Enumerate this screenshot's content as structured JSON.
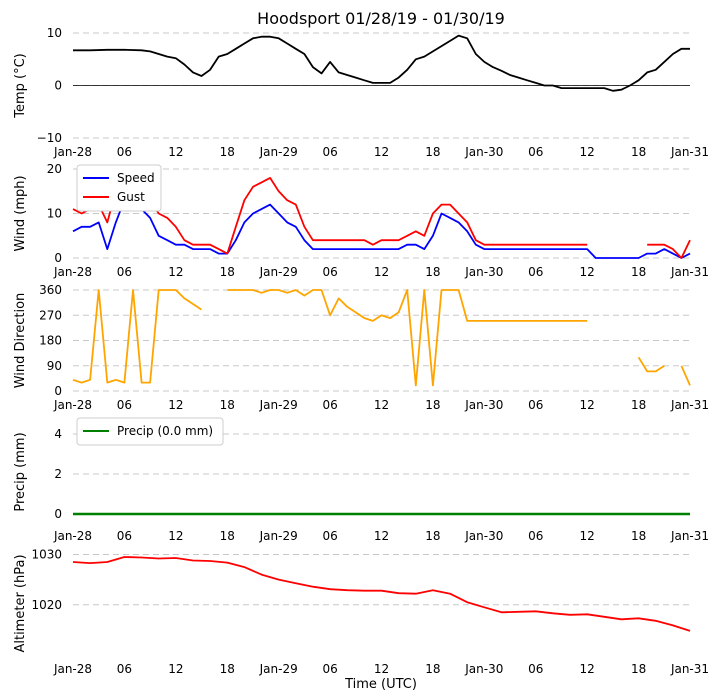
{
  "chart_data": {
    "title": "Hoodsport 01/28/19 - 01/30/19",
    "xlabel": "Time (UTC)",
    "x_ticks": [
      "Jan-28",
      "06",
      "12",
      "18",
      "Jan-29",
      "06",
      "12",
      "18",
      "Jan-30",
      "06",
      "12",
      "18",
      "Jan-31"
    ],
    "x_unit": "hours since Jan-28 00:00 UTC",
    "xlim": [
      0,
      72
    ],
    "panels": [
      {
        "type": "line",
        "ylabel": "Temp (°C)",
        "ylim": [
          -10,
          10
        ],
        "yticks": [
          10,
          0,
          -10
        ],
        "yticks_labels": [
          "10",
          "0",
          "−10"
        ],
        "zero_line": true,
        "series": [
          {
            "name": "Temp",
            "color": "#000000",
            "x": [
              0,
              2,
              4,
              6,
              8,
              9,
              10,
              11,
              12,
              13,
              14,
              15,
              16,
              17,
              18,
              19,
              20,
              21,
              22,
              23,
              24,
              25,
              26,
              27,
              28,
              29,
              30,
              31,
              32,
              33,
              34,
              35,
              36,
              37,
              38,
              39,
              40,
              41,
              42,
              43,
              44,
              45,
              46,
              47,
              48,
              49,
              50,
              51,
              52,
              53,
              54,
              55,
              56,
              57,
              58,
              59,
              60,
              61,
              62,
              63,
              64,
              65,
              66,
              67,
              68,
              69,
              70,
              71,
              72
            ],
            "y": [
              6.7,
              6.7,
              6.8,
              6.8,
              6.7,
              6.5,
              6,
              5.5,
              5.2,
              4,
              2.5,
              1.8,
              3,
              5.5,
              6,
              7,
              8,
              9,
              9.3,
              9.3,
              9,
              8,
              7,
              6,
              3.5,
              2.3,
              4.5,
              2.5,
              2,
              1.5,
              1,
              0.5,
              0.5,
              0.5,
              1.5,
              3,
              5,
              5.5,
              6.5,
              7.5,
              8.5,
              9.5,
              9,
              6,
              4.5,
              3.5,
              2.8,
              2,
              1.5,
              1,
              0.5,
              0,
              0,
              -0.5,
              -0.5,
              -0.5,
              -0.5,
              -0.5,
              -0.5,
              -1,
              -0.8,
              0,
              1,
              2.5,
              3,
              4.5,
              6,
              7,
              7
            ]
          }
        ]
      },
      {
        "type": "line",
        "ylabel": "Wind (mph)",
        "ylim": [
          0,
          20
        ],
        "yticks": [
          20,
          10,
          0
        ],
        "legend": {
          "position": "top-left"
        },
        "series": [
          {
            "name": "Speed",
            "color": "#0000ff",
            "x": [
              0,
              1,
              2,
              3,
              4,
              5,
              6,
              7,
              8,
              9,
              10,
              11,
              12,
              13,
              14,
              15,
              16,
              17,
              18,
              19,
              20,
              21,
              22,
              23,
              24,
              25,
              26,
              27,
              28,
              29,
              30,
              31,
              32,
              33,
              34,
              35,
              36,
              37,
              38,
              39,
              40,
              41,
              42,
              43,
              44,
              45,
              46,
              47,
              48,
              49,
              50,
              51,
              52,
              53,
              54,
              55,
              56,
              57,
              58,
              59,
              60,
              61,
              62,
              63,
              64,
              65,
              66,
              67,
              68,
              69,
              70,
              71,
              72
            ],
            "y": [
              6,
              7,
              7,
              8,
              2,
              8,
              13,
              12,
              11,
              9,
              5,
              4,
              3,
              3,
              2,
              2,
              2,
              1,
              1,
              4,
              8,
              10,
              11,
              12,
              10,
              8,
              7,
              4,
              2,
              2,
              2,
              2,
              2,
              2,
              2,
              2,
              2,
              2,
              2,
              3,
              3,
              2,
              5,
              10,
              9,
              8,
              6,
              3,
              2,
              2,
              2,
              2,
              2,
              2,
              2,
              2,
              2,
              2,
              2,
              2,
              2,
              0,
              0,
              0,
              0,
              0,
              0,
              1,
              1,
              2,
              1,
              0,
              1
            ]
          },
          {
            "name": "Gust",
            "color": "#ff0000",
            "x": [
              0,
              1,
              2,
              3,
              4,
              5,
              6,
              7,
              8,
              9,
              10,
              11,
              12,
              13,
              14,
              15,
              16,
              17,
              18,
              19,
              20,
              21,
              22,
              23,
              24,
              25,
              26,
              27,
              28,
              29,
              30,
              31,
              32,
              33,
              34,
              35,
              36,
              37,
              38,
              39,
              40,
              41,
              42,
              43,
              44,
              45,
              46,
              47,
              48,
              49,
              50,
              51,
              52,
              53,
              54,
              55,
              56,
              57,
              58,
              59,
              60,
              61,
              62,
              63,
              64,
              65,
              66,
              67,
              68,
              69,
              70,
              71,
              72
            ],
            "y": [
              11,
              10,
              11,
              12,
              8,
              15,
              17,
              16,
              16,
              13,
              10,
              9,
              7,
              4,
              3,
              3,
              3,
              2,
              1,
              7,
              13,
              16,
              17,
              18,
              15,
              13,
              12,
              7,
              4,
              4,
              4,
              4,
              4,
              4,
              4,
              3,
              4,
              4,
              4,
              5,
              6,
              5,
              10,
              12,
              12,
              10,
              8,
              4,
              3,
              3,
              3,
              3,
              3,
              3,
              3,
              3,
              3,
              3,
              3,
              3,
              3,
              null,
              null,
              null,
              null,
              null,
              null,
              3,
              3,
              3,
              2,
              0,
              4
            ]
          }
        ]
      },
      {
        "type": "line",
        "ylabel": "Wind Direction",
        "ylim": [
          0,
          360
        ],
        "yticks": [
          360,
          270,
          180,
          90,
          0
        ],
        "series": [
          {
            "name": "Direction",
            "color": "#ffa500",
            "x": [
              0,
              1,
              2,
              3,
              4,
              5,
              6,
              7,
              8,
              9,
              10,
              11,
              12,
              13,
              14,
              15,
              16,
              17,
              18,
              19,
              20,
              21,
              22,
              23,
              24,
              25,
              26,
              27,
              28,
              29,
              30,
              31,
              32,
              33,
              34,
              35,
              36,
              37,
              38,
              39,
              40,
              41,
              42,
              43,
              44,
              45,
              46,
              47,
              48,
              49,
              50,
              51,
              52,
              53,
              54,
              55,
              56,
              57,
              58,
              59,
              60,
              61,
              62,
              63,
              64,
              65,
              66,
              67,
              68,
              69,
              70,
              71,
              72
            ],
            "y": [
              40,
              30,
              40,
              360,
              30,
              40,
              30,
              360,
              30,
              30,
              360,
              360,
              360,
              330,
              310,
              290,
              null,
              null,
              360,
              360,
              360,
              360,
              350,
              360,
              360,
              350,
              360,
              340,
              360,
              360,
              270,
              330,
              300,
              280,
              260,
              250,
              270,
              260,
              280,
              360,
              20,
              360,
              20,
              360,
              360,
              360,
              250,
              250,
              250,
              250,
              250,
              250,
              250,
              250,
              250,
              250,
              250,
              250,
              250,
              250,
              250,
              null,
              null,
              null,
              null,
              null,
              120,
              70,
              70,
              90,
              null,
              90,
              20
            ]
          }
        ]
      },
      {
        "type": "line",
        "ylabel": "Precip (mm)",
        "ylim": [
          -0.4,
          4.6
        ],
        "yticks": [
          4,
          2,
          0
        ],
        "legend": {
          "position": "top-left"
        },
        "series": [
          {
            "name": "Precip (0.0 mm)",
            "color": "#008000",
            "x": [
              0,
              72
            ],
            "y": [
              0,
              0
            ]
          }
        ]
      },
      {
        "type": "line",
        "ylabel": "Altimeter (hPa)",
        "ylim": [
          1010,
          1030.5
        ],
        "yticks": [
          1030,
          1020
        ],
        "series": [
          {
            "name": "Altimeter",
            "color": "#ff0000",
            "x": [
              0,
              2,
              4,
              6,
              8,
              10,
              12,
              14,
              16,
              18,
              20,
              22,
              24,
              26,
              28,
              30,
              32,
              34,
              36,
              38,
              40,
              42,
              44,
              46,
              48,
              50,
              52,
              54,
              56,
              58,
              60,
              62,
              64,
              66,
              68,
              70,
              72
            ],
            "y": [
              1028.5,
              1028.3,
              1028.5,
              1029.5,
              1029.4,
              1029.2,
              1029.3,
              1028.8,
              1028.7,
              1028.4,
              1027.5,
              1026,
              1025,
              1024.3,
              1023.6,
              1023.1,
              1022.9,
              1022.8,
              1022.8,
              1022.3,
              1022.2,
              1022.9,
              1022.2,
              1020.5,
              1019.5,
              1018.5,
              1018.6,
              1018.7,
              1018.3,
              1018,
              1018.1,
              1017.6,
              1017.1,
              1017.3,
              1016.8,
              1015.9,
              1014.8
            ]
          }
        ]
      }
    ]
  }
}
